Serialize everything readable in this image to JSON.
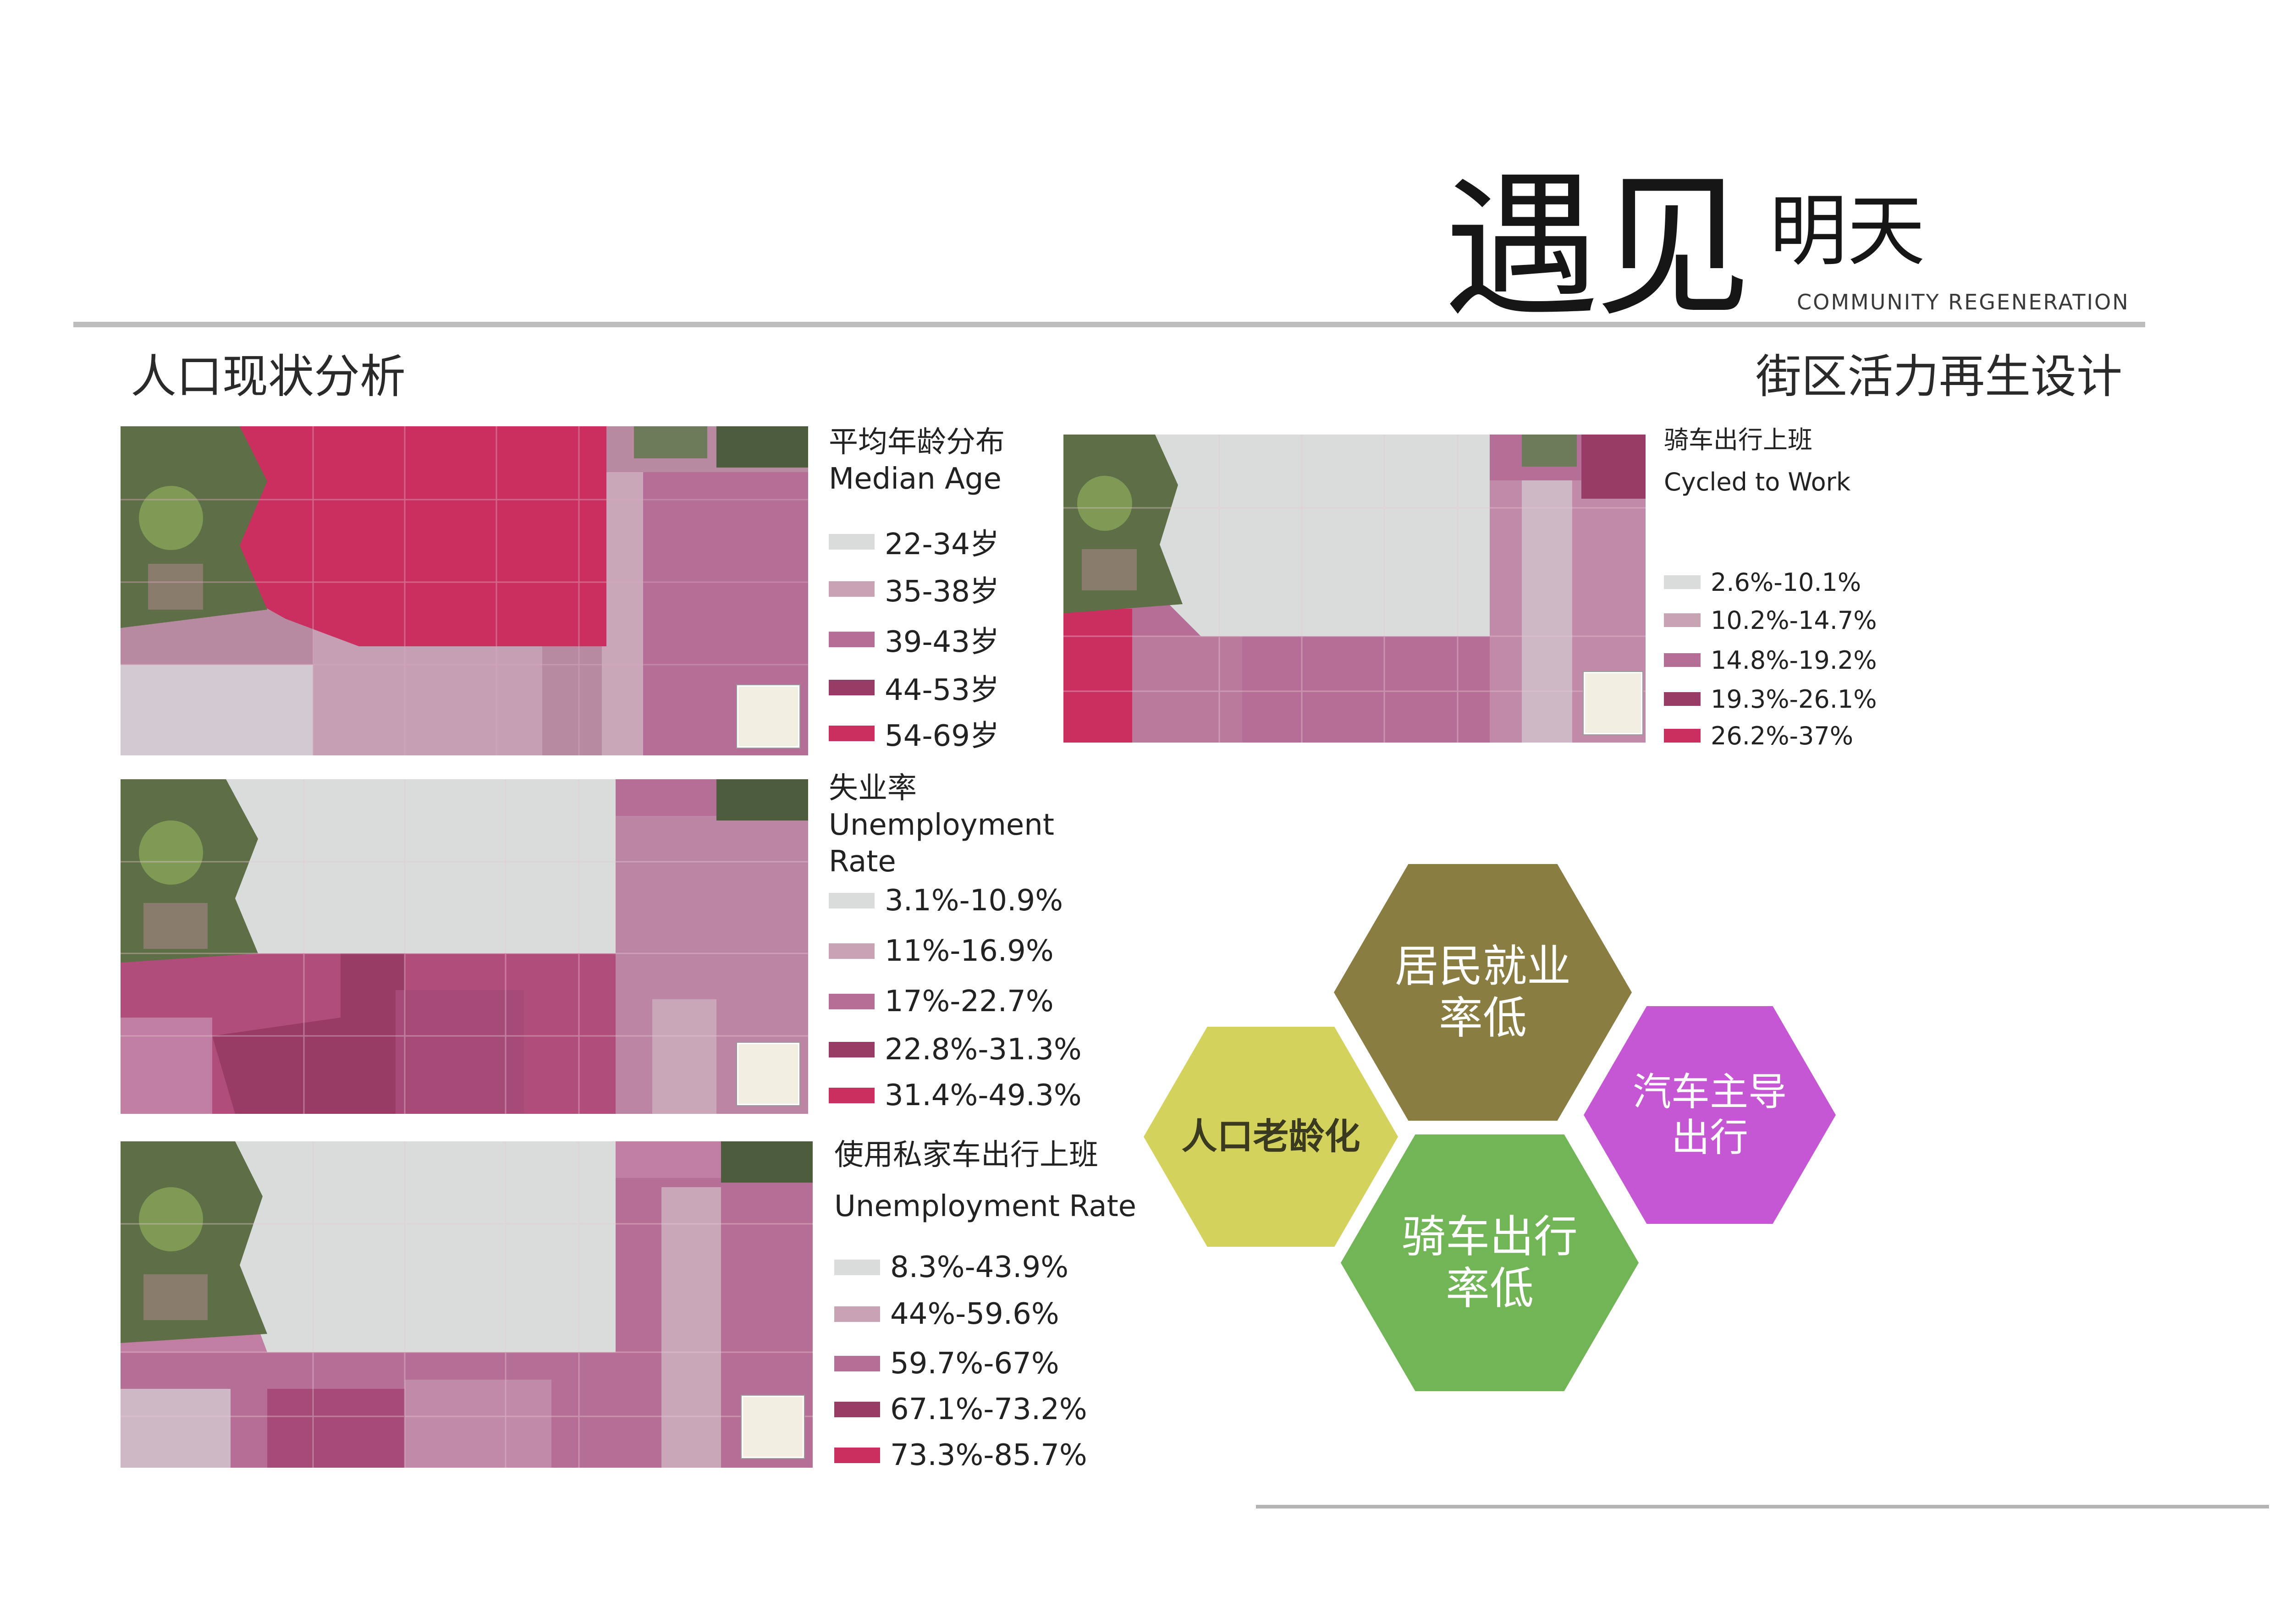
{
  "header": {
    "title_main": "遇见",
    "title_sub": "明天",
    "title_en": "COMMUNITY REGENERATION",
    "section_left": "人口现状分析",
    "section_right": "街区活力再生设计"
  },
  "colors": {
    "class1": "#d9dcdb",
    "class2": "#c7a3b4",
    "class3": "#b56e96",
    "class4": "#983c66",
    "class5": "#cb2f60"
  },
  "legends": {
    "median_age": {
      "title_cn": "平均年龄分布",
      "title_en": "Median Age",
      "items": [
        "22-34岁",
        "35-38岁",
        "39-43岁",
        "44-53岁",
        "54-69岁"
      ]
    },
    "unemployment": {
      "title_cn": "失业率",
      "title_en": "Unemployment Rate",
      "items": [
        "3.1%-10.9%",
        "11%-16.9%",
        "17%-22.7%",
        "22.8%-31.3%",
        "31.4%-49.3%"
      ]
    },
    "private_car": {
      "title_cn": "使用私家车出行上班",
      "title_en": "Unemployment  Rate",
      "items": [
        "8.3%-43.9%",
        "44%-59.6%",
        "59.7%-67%",
        "67.1%-73.2%",
        "73.3%-85.7%"
      ]
    },
    "cycled": {
      "title_cn": "骑车出行上班",
      "title_en": "Cycled to Work",
      "items": [
        "2.6%-10.1%",
        "10.2%-14.7%",
        "14.8%-19.2%",
        "19.3%-26.1%",
        "26.2%-37%"
      ]
    }
  },
  "hexagons": [
    {
      "label": "居民就业\n率低",
      "color": "#8a7d42",
      "text_color": "#ffffff"
    },
    {
      "label": "人口老龄化",
      "color": "#d3d25c",
      "text_color": "#3a3a20"
    },
    {
      "label": "汽车主导\n出行",
      "color": "#c657d4",
      "text_color": "#ffffff"
    },
    {
      "label": "骑车出行\n率低",
      "color": "#71b556",
      "text_color": "#ffffff"
    }
  ]
}
